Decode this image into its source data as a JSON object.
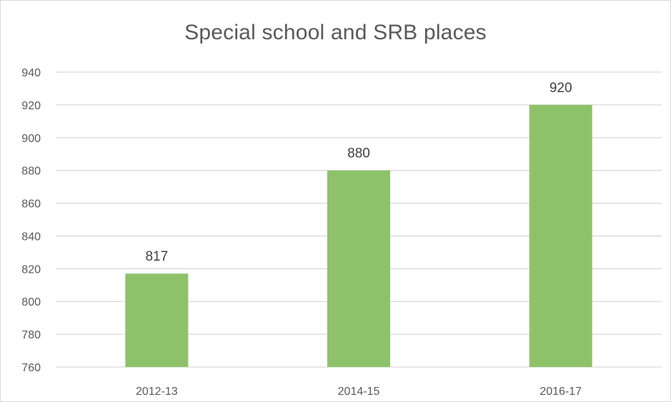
{
  "chart_data": {
    "type": "bar",
    "title": "Special school and SRB places",
    "xlabel": "",
    "ylabel": "",
    "categories": [
      "2012-13",
      "2014-15",
      "2016-17"
    ],
    "values": [
      817,
      880,
      920
    ],
    "data_labels": [
      "817",
      "880",
      "920"
    ],
    "ylim": [
      760,
      940
    ],
    "yticks": [
      760,
      780,
      800,
      820,
      840,
      860,
      880,
      900,
      920,
      940
    ],
    "grid": true,
    "legend": "none",
    "bar_color": "#8dc26a",
    "grid_color": "#d9d9d9",
    "text_color": "#595959"
  }
}
